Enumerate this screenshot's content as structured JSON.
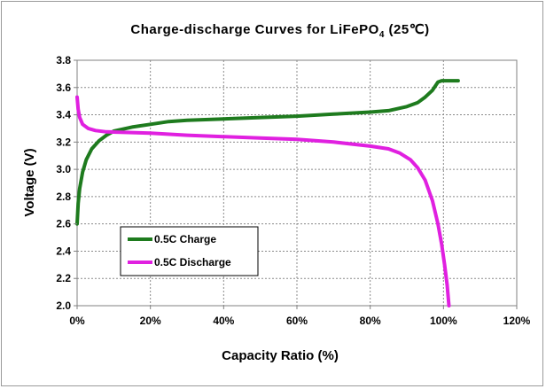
{
  "chart_data": {
    "type": "line",
    "title": {
      "main": "Charge-discharge Curves  for  LiFePO",
      "subscript": "4",
      "suffix": "  (25℃)"
    },
    "xlabel": "Capacity Ratio (%)",
    "ylabel": "Voltage  (V)",
    "xlim": [
      0,
      120
    ],
    "ylim": [
      2.0,
      3.8
    ],
    "x_ticks": [
      0,
      20,
      40,
      60,
      80,
      100,
      120
    ],
    "x_tick_labels": [
      "0%",
      "20%",
      "40%",
      "60%",
      "80%",
      "100%",
      "120%"
    ],
    "y_ticks": [
      2.0,
      2.2,
      2.4,
      2.6,
      2.8,
      3.0,
      3.2,
      3.4,
      3.6,
      3.8
    ],
    "y_tick_labels": [
      "2.0",
      "2.2",
      "2.4",
      "2.6",
      "2.8",
      "3.0",
      "3.2",
      "3.4",
      "3.6",
      "3.8"
    ],
    "grid": true,
    "legend_position": "bottom-left",
    "series": [
      {
        "name": "0.5C Charge",
        "color": "#1e7b1e",
        "points": [
          [
            0,
            2.6
          ],
          [
            0.3,
            2.75
          ],
          [
            0.7,
            2.86
          ],
          [
            1.5,
            2.98
          ],
          [
            2.5,
            3.07
          ],
          [
            4,
            3.15
          ],
          [
            6,
            3.21
          ],
          [
            8,
            3.25
          ],
          [
            10,
            3.28
          ],
          [
            15,
            3.31
          ],
          [
            20,
            3.33
          ],
          [
            25,
            3.35
          ],
          [
            30,
            3.36
          ],
          [
            40,
            3.37
          ],
          [
            50,
            3.38
          ],
          [
            60,
            3.39
          ],
          [
            70,
            3.405
          ],
          [
            80,
            3.42
          ],
          [
            85,
            3.43
          ],
          [
            90,
            3.46
          ],
          [
            93,
            3.49
          ],
          [
            95,
            3.53
          ],
          [
            97,
            3.58
          ],
          [
            98.5,
            3.64
          ],
          [
            99.5,
            3.65
          ],
          [
            101,
            3.65
          ],
          [
            104,
            3.65
          ]
        ]
      },
      {
        "name": "0.5C Discharge",
        "color": "#e020e0",
        "points": [
          [
            0,
            3.53
          ],
          [
            0.3,
            3.44
          ],
          [
            0.7,
            3.38
          ],
          [
            1.5,
            3.33
          ],
          [
            3,
            3.3
          ],
          [
            5,
            3.285
          ],
          [
            8,
            3.275
          ],
          [
            15,
            3.27
          ],
          [
            20,
            3.265
          ],
          [
            30,
            3.25
          ],
          [
            40,
            3.24
          ],
          [
            50,
            3.23
          ],
          [
            60,
            3.22
          ],
          [
            70,
            3.2
          ],
          [
            80,
            3.17
          ],
          [
            85,
            3.15
          ],
          [
            88,
            3.12
          ],
          [
            91,
            3.07
          ],
          [
            93,
            3.01
          ],
          [
            95,
            2.92
          ],
          [
            97,
            2.77
          ],
          [
            98.5,
            2.6
          ],
          [
            99.5,
            2.45
          ],
          [
            100.3,
            2.3
          ],
          [
            101,
            2.15
          ],
          [
            101.5,
            2.0
          ]
        ]
      }
    ]
  }
}
